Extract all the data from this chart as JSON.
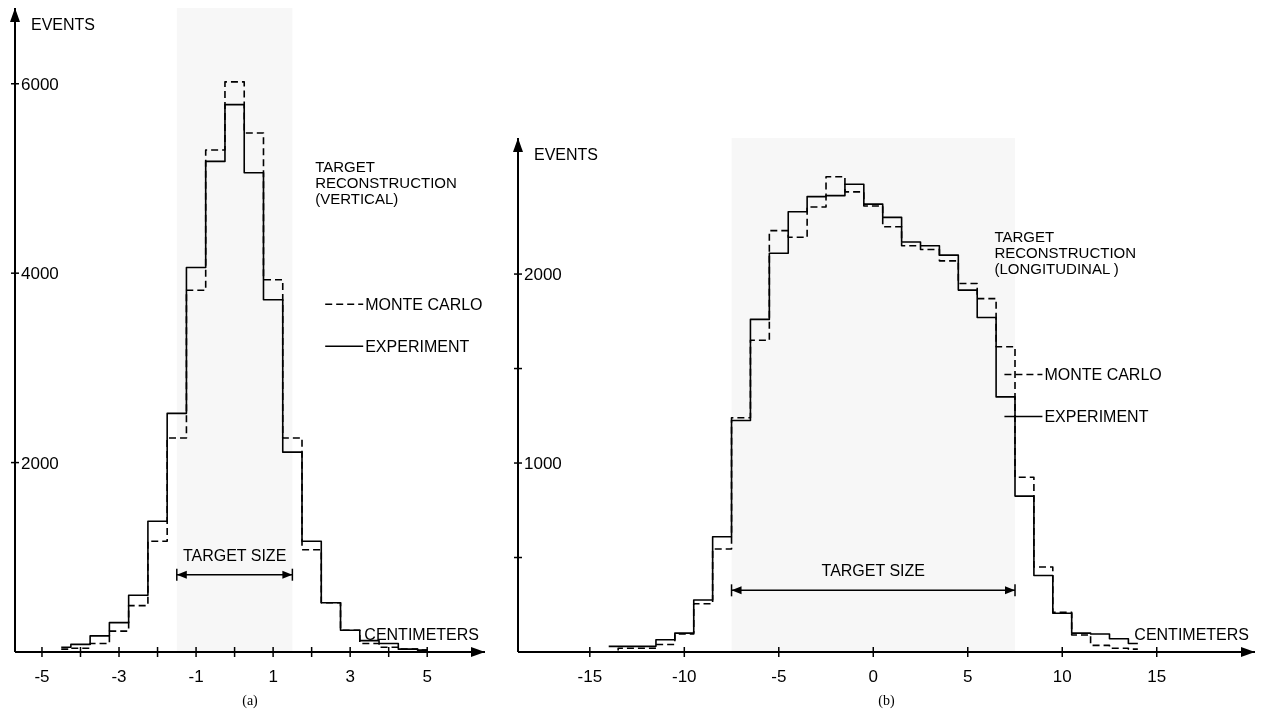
{
  "chart_data": [
    {
      "type": "step",
      "title": "(a)",
      "xlabel": "CENTIMETERS",
      "ylabel": "EVENTS",
      "annotations": [
        "TARGET RECONSTRUCTION (VERTICAL)"
      ],
      "x": [
        -4.5,
        -4,
        -3.5,
        -3,
        -2.5,
        -2,
        -1.5,
        -1,
        -0.5,
        0,
        0.5,
        1,
        1.5,
        2,
        2.5,
        3,
        3.5,
        4,
        4.5,
        5
      ],
      "series": [
        {
          "name": "MONTE CARLO",
          "color": "#000000",
          "line_style": "dashed",
          "values": [
            30,
            40,
            90,
            220,
            490,
            1170,
            2260,
            3820,
            5300,
            6020,
            5480,
            3930,
            2260,
            1080,
            520,
            230,
            90,
            50,
            30,
            20
          ]
        },
        {
          "name": "EXPERIMENT",
          "color": "#000000",
          "line_style": "solid",
          "values": [
            50,
            80,
            170,
            310,
            600,
            1380,
            2520,
            4060,
            5180,
            5780,
            5060,
            3720,
            2110,
            1170,
            520,
            230,
            120,
            90,
            30,
            20
          ]
        }
      ],
      "xlim": [
        -5.7,
        6.5
      ],
      "ylim": [
        0,
        6800
      ],
      "xticks": [
        -5,
        {
          "value": -4,
          "label": null
        },
        -3,
        {
          "value": -2,
          "label": null
        },
        -1,
        {
          "value": 0,
          "label": null
        },
        1,
        {
          "value": 2,
          "label": null
        },
        3,
        {
          "value": 4,
          "label": null
        },
        5
      ],
      "yticks": [
        2000,
        4000,
        6000
      ],
      "bands": [
        {
          "axis": "x",
          "from": -1.5,
          "to": 1.5,
          "label": "TARGET SIZE"
        }
      ],
      "legend": "right"
    },
    {
      "type": "step",
      "title": "(b)",
      "xlabel": "CENTIMETERS",
      "ylabel": "EVENTS",
      "annotations": [
        "TARGET RECONSTRUCTION (LONGITUDINAL )"
      ],
      "x": [
        -14,
        -13,
        -12,
        -11,
        -10,
        -9,
        -8,
        -7,
        -6,
        -5,
        -4,
        -3,
        -2,
        -1,
        0,
        1,
        2,
        3,
        4,
        5,
        6,
        7,
        8,
        9,
        10,
        11,
        12,
        13,
        14
      ],
      "series": [
        {
          "name": "MONTE CARLO",
          "color": "#000000",
          "line_style": "dashed",
          "values": [
            0,
            20,
            20,
            40,
            95,
            255,
            545,
            1240,
            1650,
            2230,
            2195,
            2355,
            2515,
            2435,
            2360,
            2250,
            2150,
            2130,
            2070,
            1950,
            1870,
            1615,
            925,
            450,
            210,
            90,
            35,
            20,
            15
          ]
        },
        {
          "name": "EXPERIMENT",
          "color": "#000000",
          "line_style": "solid",
          "values": [
            30,
            30,
            30,
            65,
            100,
            275,
            610,
            1225,
            1760,
            2110,
            2330,
            2410,
            2415,
            2475,
            2370,
            2300,
            2170,
            2150,
            2100,
            1915,
            1770,
            1350,
            825,
            405,
            205,
            100,
            95,
            70,
            45
          ]
        }
      ],
      "xlim": [
        -18.8,
        20.2
      ],
      "ylim": [
        0,
        2720
      ],
      "xticks": [
        -15,
        -10,
        -5,
        0,
        5,
        10,
        15
      ],
      "yticks": [
        {
          "value": 500,
          "label": null
        },
        1000,
        {
          "value": 1500,
          "label": null
        },
        2000
      ],
      "bands": [
        {
          "axis": "x",
          "from": -7.5,
          "to": 7.5,
          "label": "TARGET SIZE"
        }
      ],
      "legend": "right"
    }
  ]
}
